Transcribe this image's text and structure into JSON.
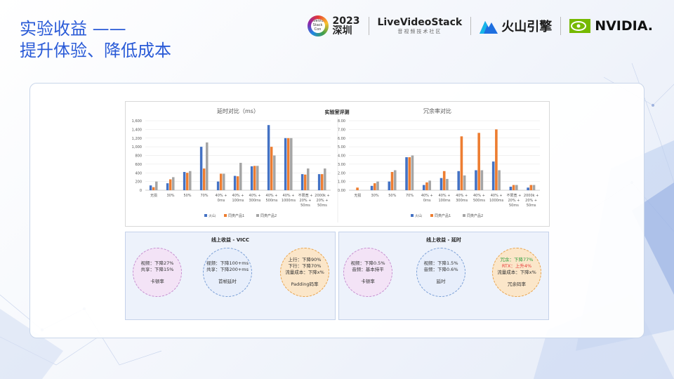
{
  "slide": {
    "title_line1": "实验收益 ——",
    "title_line2": "提升体验、降低成本"
  },
  "logos": {
    "conf_year": "2023",
    "conf_city": "深圳",
    "conf_badge": "LiveVideo Stack Con",
    "lvs_name": "LiveVideoStack",
    "lvs_sub": "音视频技术社区",
    "volcano": "火山引擎",
    "nvidia": "NVIDIA."
  },
  "lab_title": "实验室评测",
  "chart_data": [
    {
      "type": "bar",
      "title": "延时对比（ms）",
      "categories": [
        "无损",
        "30%",
        "50%",
        "70%",
        "40% + 0ms",
        "40% + 100ms",
        "40% + 300ms",
        "40% + 500ms",
        "40% + 1000ms",
        "不限宽 + 20% + 50ms",
        "2000k + 20% + 50ms"
      ],
      "series": [
        {
          "name": "火山",
          "color": "#4472c4",
          "values": [
            110,
            160,
            420,
            1000,
            200,
            330,
            550,
            1500,
            1200,
            370,
            370
          ]
        },
        {
          "name": "同类产品1",
          "color": "#ed7d31",
          "values": [
            70,
            250,
            400,
            500,
            380,
            320,
            560,
            1000,
            1200,
            360,
            370
          ]
        },
        {
          "name": "同类产品2",
          "color": "#a5a5a5",
          "values": [
            200,
            300,
            440,
            1100,
            380,
            630,
            560,
            800,
            1200,
            500,
            500
          ]
        }
      ],
      "yticks": [
        "0",
        "200",
        "400",
        "600",
        "800",
        "1,000",
        "1,200",
        "1,400",
        "1,600"
      ],
      "ylim": [
        0,
        1600
      ]
    },
    {
      "type": "bar",
      "title": "冗余率对比",
      "categories": [
        "无损",
        "30%",
        "50%",
        "70%",
        "40% + 0ms",
        "40% + 100ms",
        "40% + 300ms",
        "40% + 500ms",
        "40% + 1000ms",
        "不限宽 + 20% + 50ms",
        "2000k + 20% + 50ms"
      ],
      "series": [
        {
          "name": "火山",
          "color": "#4472c4",
          "values": [
            0,
            0.5,
            1.0,
            3.8,
            0.6,
            1.4,
            2.2,
            2.3,
            3.3,
            0.4,
            0.3
          ]
        },
        {
          "name": "同类产品1",
          "color": "#ed7d31",
          "values": [
            0.3,
            0.8,
            2.1,
            3.8,
            0.9,
            2.2,
            6.2,
            6.6,
            7.0,
            0.6,
            0.6
          ]
        },
        {
          "name": "同类产品2",
          "color": "#a5a5a5",
          "values": [
            0,
            1.0,
            2.3,
            4.0,
            1.1,
            1.3,
            1.7,
            2.3,
            2.3,
            0.6,
            0.6
          ]
        }
      ],
      "yticks": [
        "0.00",
        "1.00",
        "2.00",
        "3.00",
        "4.00",
        "5.00",
        "6.00",
        "7.00",
        "8.00"
      ],
      "ylim": [
        0,
        8
      ]
    }
  ],
  "online_vicc": {
    "title": "线上收益 - VICC",
    "circles": [
      {
        "lines": [
          "视频：下降27%",
          "共享：下降15%"
        ],
        "label": "卡顿率"
      },
      {
        "lines": [
          "视频：下降100+ms",
          "共享：下降200+ms"
        ],
        "label": "首帧延时"
      },
      {
        "lines": [
          "上行：下降90%",
          "下行：下降70%",
          "流量成本：下降x%"
        ],
        "label": "Padding码率"
      }
    ]
  },
  "online_delay": {
    "title": "线上收益 - 延时",
    "circles": [
      {
        "lines": [
          "视频：下降0.5%",
          "音频：基本持平"
        ],
        "label": "卡顿率"
      },
      {
        "lines": [
          "视频：下降1.5%",
          "音频：下降0.6%"
        ],
        "label": "延时"
      },
      {
        "line_green": "冗余：下降77%",
        "line_red": "RTX：上升4%",
        "lines": [
          "流量成本：下降x%"
        ],
        "label": "冗余码率"
      }
    ]
  }
}
